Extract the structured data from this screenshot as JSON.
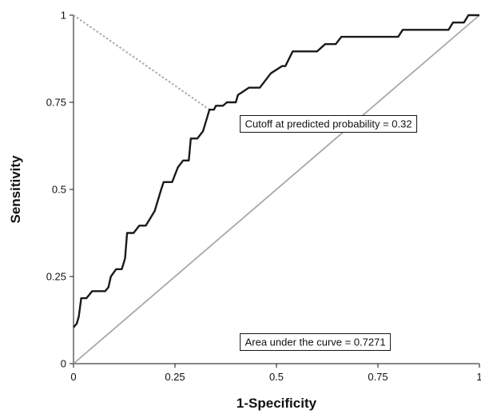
{
  "chart_data": {
    "type": "line",
    "title": "",
    "xlabel": "1-Specificity",
    "ylabel": "Sensitivity",
    "xlim": [
      0,
      1
    ],
    "ylim": [
      0,
      1
    ],
    "x_ticks": [
      {
        "value": 0,
        "label": "0"
      },
      {
        "value": 0.25,
        "label": "0.25"
      },
      {
        "value": 0.5,
        "label": "0.5"
      },
      {
        "value": 0.75,
        "label": "0.75"
      },
      {
        "value": 1,
        "label": "1"
      }
    ],
    "y_ticks": [
      {
        "value": 0,
        "label": "0"
      },
      {
        "value": 0.25,
        "label": "0.25"
      },
      {
        "value": 0.5,
        "label": "0.5"
      },
      {
        "value": 0.75,
        "label": "0.75"
      },
      {
        "value": 1,
        "label": "1"
      }
    ],
    "grid": false,
    "series": [
      {
        "role": "roc-curve",
        "color": "#1a1a1a",
        "style": "solid",
        "points": [
          [
            0,
            0.104
          ],
          [
            0.008,
            0.115
          ],
          [
            0.013,
            0.135
          ],
          [
            0.019,
            0.188
          ],
          [
            0.032,
            0.188
          ],
          [
            0.046,
            0.208
          ],
          [
            0.078,
            0.208
          ],
          [
            0.086,
            0.219
          ],
          [
            0.092,
            0.25
          ],
          [
            0.105,
            0.271
          ],
          [
            0.119,
            0.271
          ],
          [
            0.127,
            0.302
          ],
          [
            0.132,
            0.375
          ],
          [
            0.148,
            0.375
          ],
          [
            0.162,
            0.396
          ],
          [
            0.178,
            0.396
          ],
          [
            0.189,
            0.417
          ],
          [
            0.2,
            0.438
          ],
          [
            0.216,
            0.5
          ],
          [
            0.222,
            0.521
          ],
          [
            0.243,
            0.521
          ],
          [
            0.257,
            0.563
          ],
          [
            0.27,
            0.583
          ],
          [
            0.284,
            0.583
          ],
          [
            0.289,
            0.646
          ],
          [
            0.305,
            0.646
          ],
          [
            0.319,
            0.667
          ],
          [
            0.335,
            0.729
          ],
          [
            0.346,
            0.729
          ],
          [
            0.351,
            0.74
          ],
          [
            0.368,
            0.74
          ],
          [
            0.378,
            0.75
          ],
          [
            0.4,
            0.75
          ],
          [
            0.405,
            0.771
          ],
          [
            0.432,
            0.792
          ],
          [
            0.459,
            0.792
          ],
          [
            0.486,
            0.833
          ],
          [
            0.514,
            0.854
          ],
          [
            0.522,
            0.854
          ],
          [
            0.54,
            0.896
          ],
          [
            0.6,
            0.896
          ],
          [
            0.62,
            0.917
          ],
          [
            0.646,
            0.917
          ],
          [
            0.66,
            0.938
          ],
          [
            0.8,
            0.938
          ],
          [
            0.811,
            0.958
          ],
          [
            0.924,
            0.958
          ],
          [
            0.935,
            0.979
          ],
          [
            0.962,
            0.979
          ],
          [
            0.973,
            1.0
          ],
          [
            1.0,
            1.0
          ]
        ]
      },
      {
        "role": "reference-diagonal",
        "color": "#a8a8a8",
        "style": "solid",
        "points": [
          [
            0,
            0
          ],
          [
            1,
            1
          ]
        ]
      },
      {
        "role": "cutoff-guide",
        "color": "#a8a8a8",
        "style": "dotted",
        "points": [
          [
            0,
            1
          ],
          [
            0.335,
            0.729
          ]
        ]
      }
    ],
    "annotations": [
      {
        "text": "Cutoff at predicted probability = 0.32",
        "x": 0.45,
        "y": 0.688
      },
      {
        "text": "Area under the curve = 0.7271",
        "x": 0.45,
        "y": 0.062
      }
    ]
  }
}
